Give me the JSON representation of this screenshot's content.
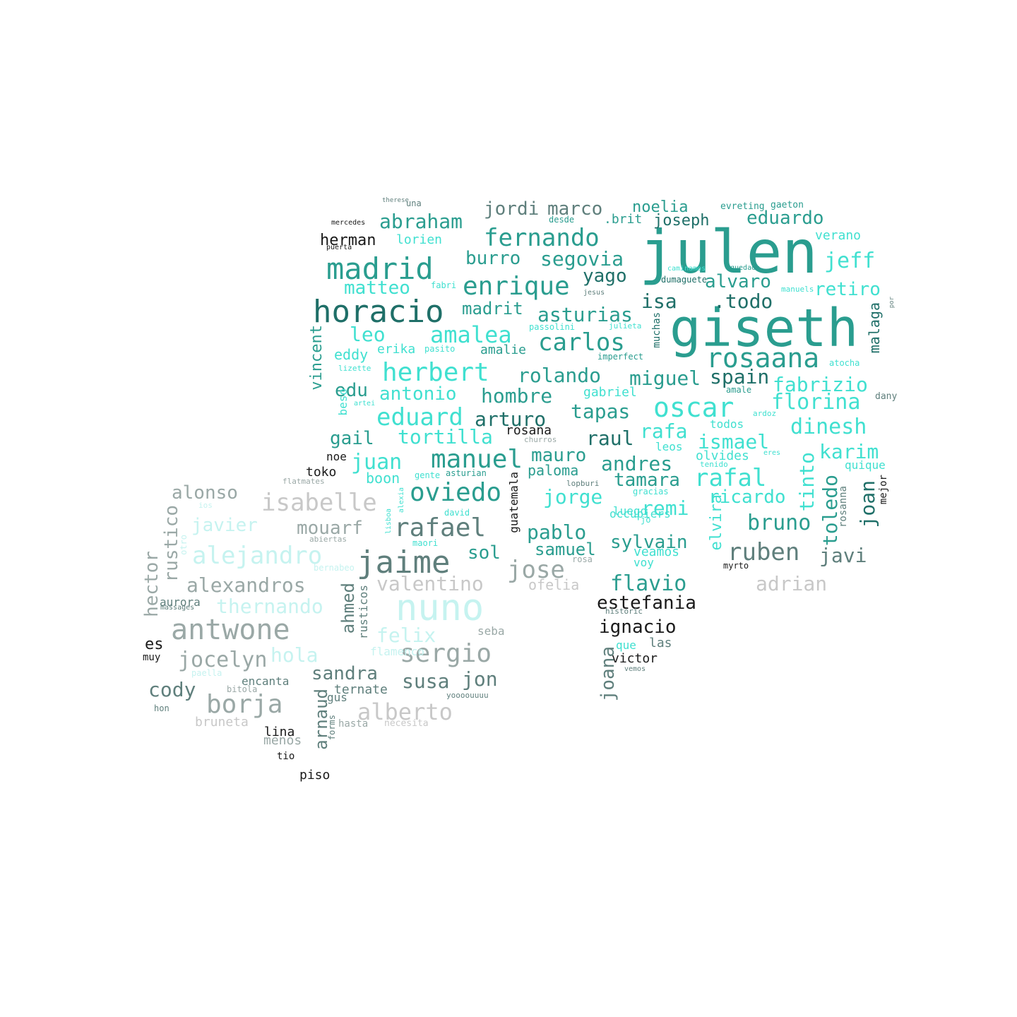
{
  "cloud": {
    "colors": {
      "teal": "#2a9d8f",
      "teal_dark": "#1f6f68",
      "cyan": "#40e0d0",
      "cyan_light": "#c6f3f0",
      "slate": "#5f7f7c",
      "gray": "#9aa8a6",
      "gray_light": "#c8c8c8",
      "black": "#1a1a1a"
    },
    "words": [
      "julen",
      "giseth",
      "horacio",
      "madrid",
      "nuno",
      "jaime",
      "rosaana",
      "oscar",
      "herbert",
      "amalea",
      "enrique",
      "fernando",
      "antwone",
      "borja",
      "isabelle",
      "alejandro",
      "rafael",
      "oviedo",
      "carlos",
      "manuel",
      "eduard",
      "ruben",
      "sergio",
      "abraham",
      "jordi",
      "marco",
      "noelia",
      "eduardo",
      "segovia",
      "burro",
      "yago",
      "alvaro",
      "matteo",
      "retiro",
      "jeff",
      "asturias",
      "madrit",
      "isa",
      ".todo",
      "leo",
      "eddy",
      "erika",
      "amalie",
      "malaga",
      "rolando",
      "miguel",
      "spain",
      "edu",
      "antonio",
      "hombre",
      "fabrizio",
      "florina",
      "vincent",
      "arturo",
      "tapas",
      "gail",
      "tortilla",
      "rosana",
      "rafa",
      "raul",
      "dinesh",
      "ismael",
      "karim",
      "juan",
      "mauro",
      "andres",
      "paloma",
      "tamara",
      "rafal",
      "tinto",
      "joan",
      "quique",
      "alonso",
      "jorge",
      "remi",
      "ricardo",
      "bruno",
      "toledo",
      "javier",
      "mouarf",
      "pablo",
      "sylvain",
      "samuel",
      "elvira",
      "sol",
      "jose",
      "javi",
      "alexandros",
      "valentino",
      "flavio",
      "adrian",
      "ofelia",
      "hector",
      "rustico",
      "thernando",
      "estefania",
      "ignacio",
      "ahmed",
      "rusticos",
      "felix",
      "seba",
      "jocelyn",
      "hola",
      "es",
      "muy",
      "cody",
      "sandra",
      "susa",
      "jon",
      "ternate",
      "gus",
      "alberto",
      "arnaud",
      "joana",
      "las",
      "victor",
      "que",
      "lina",
      "menos",
      "bruneta",
      "hasta",
      "necesita",
      "tio",
      "piso",
      "hon",
      "bitola",
      "encanta",
      "paella",
      "aurora",
      "massages",
      "toko",
      "noe",
      "flatmates",
      "boon",
      "gente",
      "asturian",
      "guatemala",
      "mejor",
      "rosanna",
      "veamos",
      "voy",
      "myrto",
      "historic",
      "vemos",
      "gabriel",
      "amale",
      "dany",
      "atocha",
      "imperfect",
      "muchas",
      "passolini",
      "julieta",
      "pasito",
      "lizette",
      "artei",
      "beso",
      "todos",
      "ardoz",
      "leos",
      "olvides",
      "eres",
      "tenido",
      "gracias",
      "occupiers",
      "jo",
      "luego",
      "david",
      "maori",
      "alexia",
      "lisboa",
      "otro",
      "bernabeo",
      "abiertas",
      "ios",
      "lopburi",
      "churros",
      "una",
      "therese",
      "evreting",
      "gaeton",
      "mercedes",
      "puerta",
      "herman",
      "lorien",
      "desde",
      ".brit",
      "joseph",
      "verano",
      "caminamos",
      "quedado",
      "dumaguete",
      "jesus",
      "fabri",
      "manuels",
      "por",
      "flamenco",
      "forms",
      "yoooouuuu",
      "rosa"
    ]
  }
}
